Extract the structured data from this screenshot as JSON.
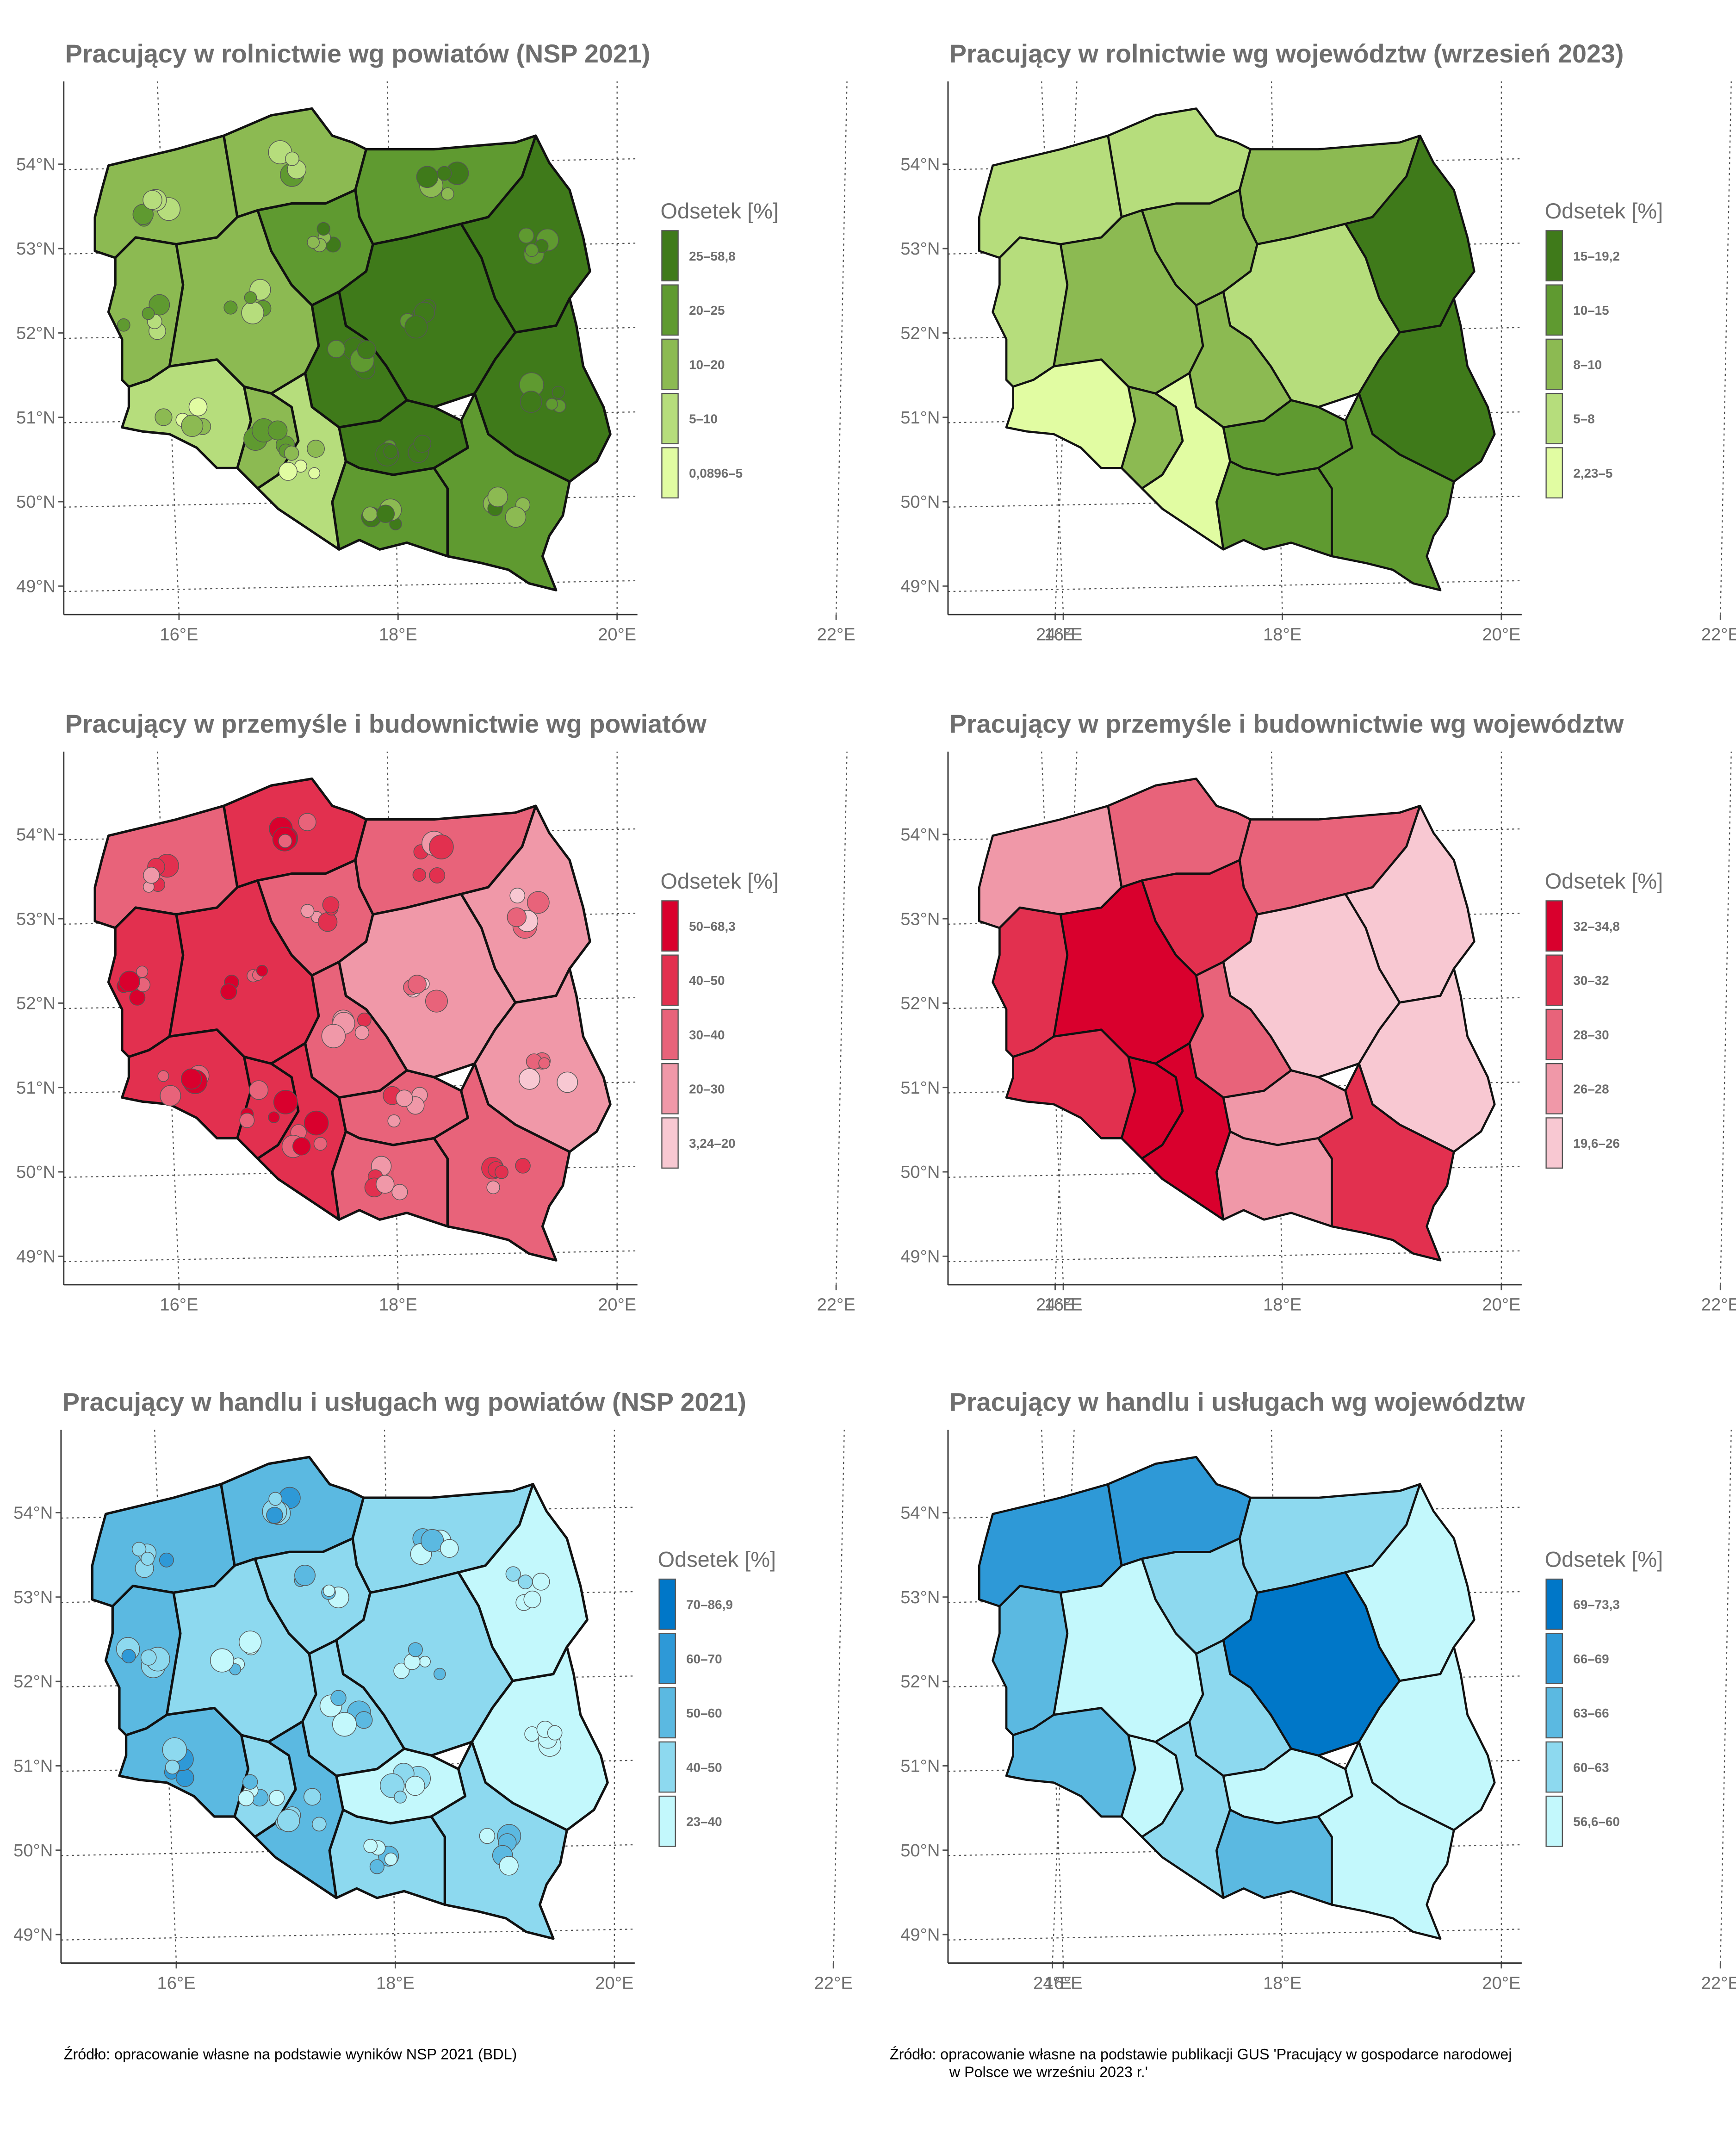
{
  "panels": [
    {
      "title": "Pracujący w rolnictwie wg powiatów (NSP 2021)",
      "legend": {
        "title": "Odsetek [%]",
        "classes": [
          {
            "label": "25–58,8",
            "color": "#3f7a1a"
          },
          {
            "label": "20–25",
            "color": "#5f9a30"
          },
          {
            "label": "10–20",
            "color": "#8cba52"
          },
          {
            "label": "5–10",
            "color": "#b6dd7c"
          },
          {
            "label": "0,0896–5",
            "color": "#e1fca2"
          }
        ]
      }
    },
    {
      "title": "Pracujący w rolnictwie wg województw (wrzesień 2023)",
      "legend": {
        "title": "Odsetek [%]",
        "classes": [
          {
            "label": "15–19,2",
            "color": "#3f7a1a"
          },
          {
            "label": "10–15",
            "color": "#5f9a30"
          },
          {
            "label": "8–10",
            "color": "#8cba52"
          },
          {
            "label": "5–8",
            "color": "#b6dd7c"
          },
          {
            "label": "2,23–5",
            "color": "#e1fca2"
          }
        ]
      }
    },
    {
      "title": "Pracujący w przemyśle i budownictwie wg powiatów",
      "legend": {
        "title": "Odsetek [%]",
        "classes": [
          {
            "label": "50–68,3",
            "color": "#d9002d"
          },
          {
            "label": "40–50",
            "color": "#e2304f"
          },
          {
            "label": "30–40",
            "color": "#e8637a"
          },
          {
            "label": "20–30",
            "color": "#f098a8"
          },
          {
            "label": "3,24–20",
            "color": "#f8c8d2"
          }
        ]
      }
    },
    {
      "title": "Pracujący w przemyśle i budownictwie wg województw",
      "legend": {
        "title": "Odsetek [%]",
        "classes": [
          {
            "label": "32–34,8",
            "color": "#d9002d"
          },
          {
            "label": "30–32",
            "color": "#e2304f"
          },
          {
            "label": "28–30",
            "color": "#e8637a"
          },
          {
            "label": "26–28",
            "color": "#f098a8"
          },
          {
            "label": "19,6–26",
            "color": "#f8c8d2"
          }
        ]
      }
    },
    {
      "title": "Pracujący w handlu i usługach wg powiatów (NSP 2021)",
      "legend": {
        "title": "Odsetek [%]",
        "classes": [
          {
            "label": "70–86,9",
            "color": "#0077c8"
          },
          {
            "label": "60–70",
            "color": "#2e99d7"
          },
          {
            "label": "50–60",
            "color": "#5bb9e1"
          },
          {
            "label": "40–50",
            "color": "#8dd9ef"
          },
          {
            "label": "23–40",
            "color": "#c3f8fc"
          }
        ]
      }
    },
    {
      "title": "Pracujący w handlu i usługach wg województw",
      "legend": {
        "title": "Odsetek [%]",
        "classes": [
          {
            "label": "69–73,3",
            "color": "#0077c8"
          },
          {
            "label": "66–69",
            "color": "#2e99d7"
          },
          {
            "label": "63–66",
            "color": "#5bb9e1"
          },
          {
            "label": "60–63",
            "color": "#8dd9ef"
          },
          {
            "label": "56,6–60",
            "color": "#c3f8fc"
          }
        ]
      }
    }
  ],
  "map_axes": {
    "lat_ticks": [
      {
        "value": 54,
        "label": "54°N"
      },
      {
        "value": 53,
        "label": "53°N"
      },
      {
        "value": 52,
        "label": "52°N"
      },
      {
        "value": 51,
        "label": "51°N"
      },
      {
        "value": 50,
        "label": "50°N"
      },
      {
        "value": 49,
        "label": "49°N"
      }
    ],
    "lon_ticks": [
      {
        "value": 16,
        "label": "16°E"
      },
      {
        "value": 18,
        "label": "18°E"
      },
      {
        "value": 20,
        "label": "20°E"
      },
      {
        "value": 22,
        "label": "22°E"
      },
      {
        "value": 24,
        "label": "24°E"
      }
    ]
  },
  "sources": [
    "Źródło: opracowanie własne na podstawie wyników NSP 2021 (BDL)",
    "Źródło: opracowanie własne na podstawie publikacji GUS 'Pracujący w gospodarce narodowej",
    "w Polsce we wrześniu 2023 r.'"
  ]
}
